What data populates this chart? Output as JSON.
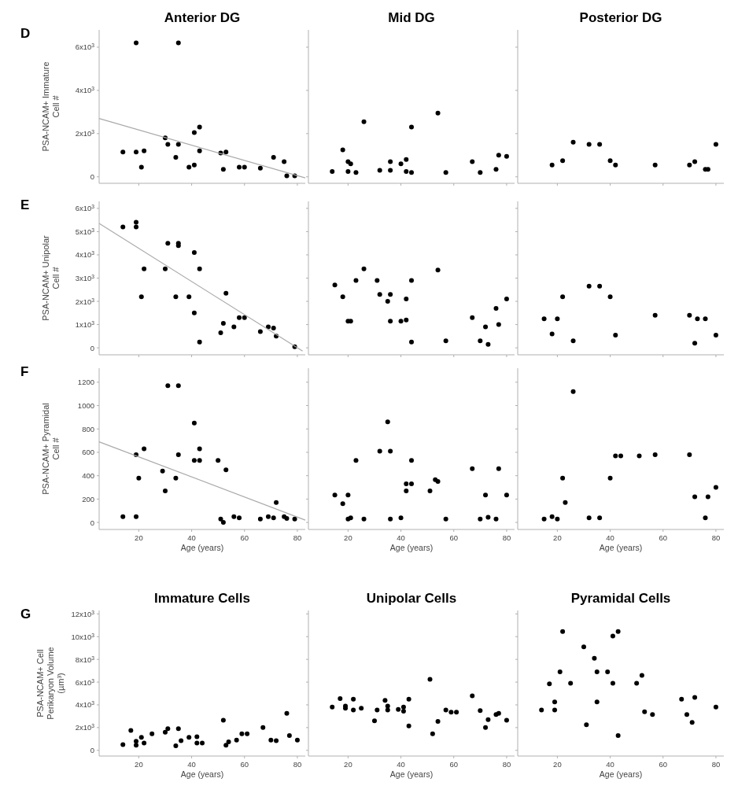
{
  "chart_data": [
    {
      "type": "scatter",
      "title": "Anterior DG",
      "ylabel": "PSA-NCAM+ Immature Cell #",
      "annotations": [
        "D"
      ],
      "xlim": [
        5,
        83
      ],
      "ylim": [
        -300,
        6800
      ],
      "xticks": [
        20,
        40,
        60,
        80
      ],
      "yticks": [
        0,
        {
          "value": 2000,
          "label": "2x10$^{3}$"
        },
        {
          "value": 4000,
          "label": "4x10$^{3}$"
        },
        {
          "value": 6000,
          "label": "6x10$^{3}$"
        }
      ],
      "tick_labels": "y",
      "marker": "circle",
      "series": [
        {
          "color": "#000000",
          "x": [
            14,
            19,
            19,
            21,
            22,
            30,
            31,
            34,
            35,
            35,
            39,
            41,
            41,
            43,
            43,
            51,
            53,
            52,
            58,
            60,
            66,
            71,
            75,
            76,
            79
          ],
          "values": [
            1150,
            6200,
            1150,
            450,
            1200,
            1800,
            1500,
            900,
            6200,
            1500,
            450,
            550,
            2050,
            2300,
            1200,
            1100,
            1150,
            350,
            450,
            450,
            400,
            900,
            700,
            50,
            50
          ]
        },
        {
          "type": "line",
          "marker": "none",
          "color": "#aaaaaa",
          "x": [
            5,
            83
          ],
          "values": [
            2700,
            -50
          ]
        }
      ]
    },
    {
      "type": "scatter",
      "title": "Mid DG",
      "xlim": [
        5,
        83
      ],
      "ylim": [
        -300,
        6800
      ],
      "xticks": [
        20,
        40,
        60,
        80
      ],
      "yticks": [
        {
          "value": 0,
          "label": null
        },
        {
          "value": 2000,
          "label": null
        },
        {
          "value": 4000,
          "label": null
        },
        {
          "value": 6000,
          "label": null
        }
      ],
      "tick_labels": false,
      "marker": "circle",
      "series": [
        {
          "color": "#000000",
          "x": [
            14,
            18,
            20,
            20,
            21,
            23,
            26,
            32,
            36,
            36,
            40,
            42,
            42,
            44,
            44,
            54,
            57,
            67,
            70,
            76,
            77,
            80
          ],
          "values": [
            250,
            1250,
            700,
            250,
            600,
            200,
            2550,
            300,
            700,
            300,
            600,
            800,
            250,
            200,
            2300,
            2950,
            200,
            700,
            200,
            350,
            1000,
            950
          ]
        }
      ]
    },
    {
      "type": "scatter",
      "title": "Posterior DG",
      "xlim": [
        5,
        83
      ],
      "ylim": [
        -300,
        6800
      ],
      "xticks": [
        20,
        40,
        60,
        80
      ],
      "yticks": [
        {
          "value": 0,
          "label": null
        },
        {
          "value": 2000,
          "label": null
        },
        {
          "value": 4000,
          "label": null
        },
        {
          "value": 6000,
          "label": null
        }
      ],
      "tick_labels": false,
      "marker": "circle",
      "series": [
        {
          "color": "#000000",
          "x": [
            18,
            22,
            26,
            32,
            36,
            40,
            42,
            57,
            70,
            72,
            76,
            77,
            80
          ],
          "values": [
            550,
            750,
            1600,
            1500,
            1500,
            750,
            550,
            550,
            550,
            700,
            350,
            350,
            1500
          ]
        }
      ]
    },
    {
      "type": "scatter",
      "ylabel": "PSA-NCAM+ Unipolar Cell #",
      "annotations": [
        "E"
      ],
      "xlim": [
        5,
        83
      ],
      "ylim": [
        -300,
        6300
      ],
      "xticks": [
        20,
        40,
        60,
        80
      ],
      "yticks": [
        0,
        {
          "value": 1000,
          "label": "1x10$^{3}$"
        },
        {
          "value": 2000,
          "label": "2x10$^{3}$"
        },
        {
          "value": 3000,
          "label": "3x10$^{3}$"
        },
        {
          "value": 4000,
          "label": "4x10$^{3}$"
        },
        {
          "value": 5000,
          "label": "5x10$^{3}$"
        },
        {
          "value": 6000,
          "label": "6x10$^{3}$"
        }
      ],
      "tick_labels": "y",
      "marker": "circle",
      "series": [
        {
          "color": "#000000",
          "x": [
            14,
            19,
            19,
            22,
            21,
            30,
            31,
            34,
            35,
            35,
            39,
            41,
            41,
            43,
            43,
            51,
            52,
            53,
            56,
            58,
            60,
            66,
            69,
            71,
            72,
            79
          ],
          "values": [
            5200,
            5400,
            5200,
            3400,
            2200,
            3400,
            4500,
            2200,
            4500,
            4400,
            2200,
            4100,
            1500,
            3400,
            250,
            650,
            1050,
            2350,
            900,
            1300,
            1300,
            700,
            900,
            850,
            500,
            50
          ]
        },
        {
          "type": "line",
          "marker": "none",
          "color": "#aaaaaa",
          "x": [
            5,
            82
          ],
          "values": [
            5350,
            -140
          ]
        }
      ]
    },
    {
      "type": "scatter",
      "xlim": [
        5,
        83
      ],
      "ylim": [
        -300,
        6300
      ],
      "xticks": [
        20,
        40,
        60,
        80
      ],
      "yticks": [
        {
          "value": 0,
          "label": null
        },
        {
          "value": 1000,
          "label": null
        },
        {
          "value": 2000,
          "label": null
        },
        {
          "value": 3000,
          "label": null
        },
        {
          "value": 4000,
          "label": null
        },
        {
          "value": 5000,
          "label": null
        },
        {
          "value": 6000,
          "label": null
        }
      ],
      "tick_labels": false,
      "marker": "circle",
      "series": [
        {
          "color": "#000000",
          "x": [
            15,
            18,
            20,
            21,
            23,
            26,
            31,
            32,
            35,
            36,
            36,
            40,
            42,
            42,
            44,
            44,
            54,
            57,
            67,
            70,
            72,
            73,
            76,
            77,
            80
          ],
          "values": [
            2700,
            2200,
            1150,
            1150,
            2900,
            3400,
            2900,
            2300,
            2000,
            2300,
            1150,
            1150,
            1200,
            2100,
            2900,
            250,
            3350,
            300,
            1300,
            300,
            900,
            150,
            1700,
            1000,
            2100
          ]
        }
      ]
    },
    {
      "type": "scatter",
      "xlim": [
        5,
        83
      ],
      "ylim": [
        -300,
        6300
      ],
      "xticks": [
        20,
        40,
        60,
        80
      ],
      "yticks": [
        {
          "value": 0,
          "label": null
        },
        {
          "value": 1000,
          "label": null
        },
        {
          "value": 2000,
          "label": null
        },
        {
          "value": 3000,
          "label": null
        },
        {
          "value": 4000,
          "label": null
        },
        {
          "value": 5000,
          "label": null
        },
        {
          "value": 6000,
          "label": null
        }
      ],
      "tick_labels": false,
      "marker": "circle",
      "series": [
        {
          "color": "#000000",
          "x": [
            15,
            18,
            20,
            22,
            26,
            32,
            36,
            40,
            42,
            57,
            70,
            72,
            73,
            76,
            80
          ],
          "values": [
            1250,
            600,
            1250,
            2200,
            300,
            2650,
            2650,
            2200,
            550,
            1400,
            1400,
            200,
            1250,
            1250,
            550
          ]
        }
      ]
    },
    {
      "type": "scatter",
      "xlabel": "Age (years)",
      "ylabel": "PSA-NCAM+ Pyramidal Cell #",
      "annotations": [
        "F"
      ],
      "xlim": [
        5,
        83
      ],
      "ylim": [
        -60,
        1320
      ],
      "xticks": [
        20,
        40,
        60,
        80
      ],
      "yticks": [
        0,
        200,
        400,
        600,
        800,
        1000,
        1200
      ],
      "marker": "circle",
      "series": [
        {
          "color": "#000000",
          "x": [
            14,
            19,
            19,
            20,
            22,
            30,
            29,
            31,
            35,
            35,
            34,
            41,
            41,
            43,
            43,
            50,
            53,
            51,
            52,
            56,
            58,
            66,
            69,
            71,
            72,
            75,
            76,
            79
          ],
          "values": [
            50,
            50,
            580,
            380,
            630,
            270,
            440,
            1170,
            1170,
            580,
            380,
            850,
            530,
            530,
            630,
            530,
            450,
            30,
            0,
            50,
            40,
            30,
            50,
            40,
            170,
            50,
            35,
            30
          ]
        },
        {
          "type": "line",
          "marker": "none",
          "color": "#aaaaaa",
          "x": [
            5,
            83
          ],
          "values": [
            690,
            20
          ]
        }
      ]
    },
    {
      "type": "scatter",
      "xlabel": "Age (years)",
      "xlim": [
        5,
        83
      ],
      "ylim": [
        -60,
        1320
      ],
      "xticks": [
        20,
        40,
        60,
        80
      ],
      "yticks": [
        {
          "value": 0,
          "label": null
        },
        {
          "value": 200,
          "label": null
        },
        {
          "value": 400,
          "label": null
        },
        {
          "value": 600,
          "label": null
        },
        {
          "value": 800,
          "label": null
        },
        {
          "value": 1000,
          "label": null
        },
        {
          "value": 1200,
          "label": null
        }
      ],
      "tick_labels": "x",
      "marker": "circle",
      "series": [
        {
          "color": "#000000",
          "x": [
            15,
            18,
            20,
            20,
            21,
            23,
            26,
            32,
            35,
            36,
            36,
            40,
            42,
            42,
            44,
            44,
            51,
            53,
            54,
            57,
            67,
            70,
            72,
            73,
            76,
            77,
            80
          ],
          "values": [
            235,
            160,
            235,
            30,
            40,
            530,
            30,
            610,
            860,
            610,
            30,
            40,
            330,
            270,
            330,
            530,
            270,
            365,
            350,
            30,
            460,
            30,
            235,
            45,
            30,
            460,
            235
          ]
        }
      ]
    },
    {
      "type": "scatter",
      "xlabel": "Age (years)",
      "xlim": [
        5,
        83
      ],
      "ylim": [
        -60,
        1320
      ],
      "xticks": [
        20,
        40,
        60,
        80
      ],
      "yticks": [
        {
          "value": 0,
          "label": null
        },
        {
          "value": 200,
          "label": null
        },
        {
          "value": 400,
          "label": null
        },
        {
          "value": 600,
          "label": null
        },
        {
          "value": 800,
          "label": null
        },
        {
          "value": 1000,
          "label": null
        },
        {
          "value": 1200,
          "label": null
        }
      ],
      "tick_labels": "x",
      "marker": "circle",
      "series": [
        {
          "color": "#000000",
          "x": [
            15,
            18,
            20,
            22,
            23,
            26,
            32,
            36,
            40,
            42,
            44,
            51,
            57,
            70,
            72,
            76,
            77,
            80
          ],
          "values": [
            30,
            50,
            30,
            380,
            170,
            1120,
            40,
            40,
            380,
            570,
            570,
            570,
            580,
            580,
            220,
            40,
            220,
            300
          ]
        }
      ]
    },
    {
      "type": "scatter",
      "title": "Immature Cells",
      "xlabel": "Age (years)",
      "ylabel": "PSA-NCAM+ Cell Perikaryon Volume (µm³)",
      "annotations": [
        "G"
      ],
      "xlim": [
        5,
        83
      ],
      "ylim": [
        -500,
        12300
      ],
      "xticks": [
        20,
        40,
        60,
        80
      ],
      "yticks": [
        0,
        {
          "value": 2000,
          "label": "2x10$^{3}$"
        },
        {
          "value": 4000,
          "label": "4x10$^{3}$"
        },
        {
          "value": 6000,
          "label": "6x10$^{3}$"
        },
        {
          "value": 8000,
          "label": "8x10$^{3}$"
        },
        {
          "value": 10000,
          "label": "10x10$^{3}$"
        },
        {
          "value": 12000,
          "label": "12x10$^{3}$"
        }
      ],
      "marker": "circle",
      "series": [
        {
          "color": "#000000",
          "x": [
            14,
            17,
            19,
            19,
            21,
            22,
            25,
            30,
            31,
            34,
            35,
            36,
            39,
            42,
            42,
            44,
            52,
            53,
            54,
            57,
            59,
            61,
            67,
            70,
            72,
            76,
            77,
            80
          ],
          "values": [
            500,
            1750,
            800,
            450,
            1150,
            650,
            1450,
            1600,
            1900,
            400,
            1900,
            850,
            1150,
            1200,
            650,
            650,
            2650,
            450,
            750,
            900,
            1450,
            1450,
            2000,
            900,
            850,
            3250,
            1300,
            900
          ]
        }
      ]
    },
    {
      "type": "scatter",
      "title": "Unipolar Cells",
      "xlabel": "Age (years)",
      "xlim": [
        5,
        83
      ],
      "ylim": [
        -500,
        12300
      ],
      "xticks": [
        20,
        40,
        60,
        80
      ],
      "yticks": [
        {
          "value": 0,
          "label": null
        },
        {
          "value": 2000,
          "label": null
        },
        {
          "value": 4000,
          "label": null
        },
        {
          "value": 6000,
          "label": null
        },
        {
          "value": 8000,
          "label": null
        },
        {
          "value": 10000,
          "label": null
        },
        {
          "value": 12000,
          "label": null
        }
      ],
      "tick_labels": "x",
      "marker": "circle",
      "series": [
        {
          "color": "#000000",
          "x": [
            14,
            17,
            19,
            19,
            22,
            22,
            25,
            30,
            31,
            34,
            35,
            35,
            39,
            41,
            41,
            43,
            43,
            51,
            52,
            54,
            57,
            59,
            61,
            67,
            70,
            72,
            73,
            76,
            77,
            80
          ],
          "values": [
            3800,
            4550,
            3900,
            3700,
            3550,
            4500,
            3700,
            2600,
            3550,
            4400,
            3900,
            3550,
            3600,
            3800,
            3450,
            4500,
            2150,
            6250,
            1450,
            2550,
            3550,
            3350,
            3350,
            4800,
            3500,
            2000,
            2700,
            3150,
            3250,
            2650
          ]
        }
      ]
    },
    {
      "type": "scatter",
      "title": "Pyramidal Cells",
      "xlabel": "Age (years)",
      "xlim": [
        5,
        83
      ],
      "ylim": [
        -500,
        12300
      ],
      "xticks": [
        20,
        40,
        60,
        80
      ],
      "yticks": [
        {
          "value": 0,
          "label": null
        },
        {
          "value": 2000,
          "label": null
        },
        {
          "value": 4000,
          "label": null
        },
        {
          "value": 6000,
          "label": null
        },
        {
          "value": 8000,
          "label": null
        },
        {
          "value": 10000,
          "label": null
        },
        {
          "value": 12000,
          "label": null
        }
      ],
      "tick_labels": "x",
      "marker": "circle",
      "series": [
        {
          "color": "#000000",
          "x": [
            14,
            17,
            19,
            19,
            21,
            22,
            25,
            30,
            31,
            34,
            35,
            35,
            39,
            41,
            41,
            43,
            43,
            50,
            52,
            53,
            56,
            67,
            69,
            71,
            72,
            80
          ],
          "values": [
            3550,
            5850,
            4250,
            3550,
            6900,
            10450,
            5900,
            9100,
            2250,
            8100,
            6900,
            4250,
            6900,
            10050,
            5900,
            10450,
            1300,
            5900,
            6600,
            3400,
            3150,
            4500,
            3150,
            2450,
            4650,
            3800
          ]
        }
      ]
    }
  ]
}
